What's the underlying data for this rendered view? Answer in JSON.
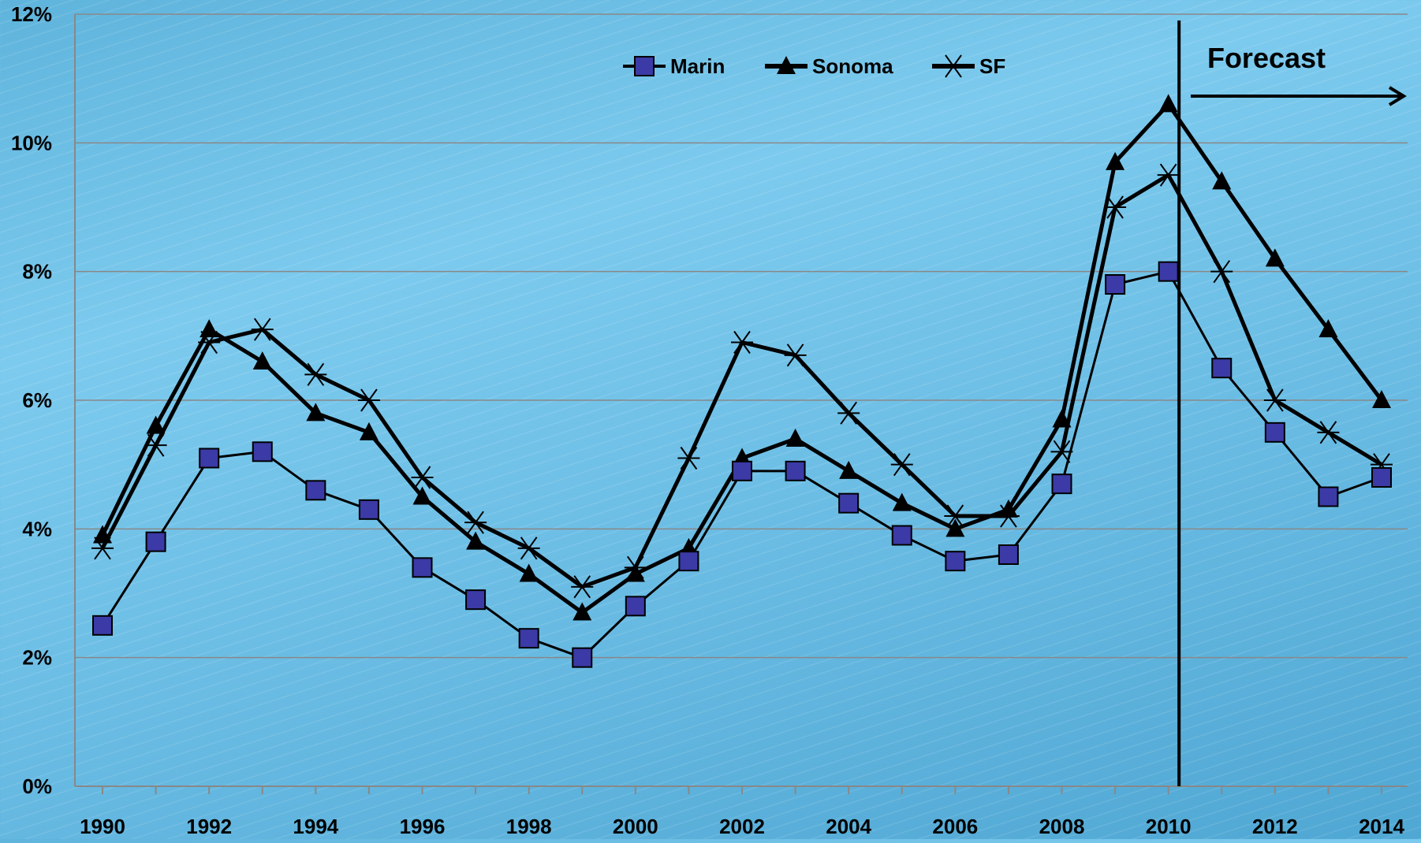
{
  "chart_data": {
    "type": "line",
    "categories": [
      "1990",
      "1991",
      "1992",
      "1993",
      "1994",
      "1995",
      "1996",
      "1997",
      "1998",
      "1999",
      "2000",
      "2001",
      "2002",
      "2003",
      "2004",
      "2005",
      "2006",
      "2007",
      "2008",
      "2009",
      "2010",
      "2011",
      "2012",
      "2013",
      "2014"
    ],
    "x_tick_labels": [
      "1990",
      "1992",
      "1994",
      "1996",
      "1998",
      "2000",
      "2002",
      "2004",
      "2006",
      "2008",
      "2010",
      "2012",
      "2014"
    ],
    "y_tick_labels": [
      "0%",
      "2%",
      "4%",
      "6%",
      "8%",
      "10%",
      "12%"
    ],
    "ylim": [
      0,
      12
    ],
    "y_unit": "%",
    "grid": "horizontal",
    "legend_position": "top-center",
    "series": [
      {
        "name": "Marin",
        "marker": "square",
        "color": "#3b3aa6",
        "values": [
          2.5,
          3.8,
          5.1,
          5.2,
          4.6,
          4.3,
          3.4,
          2.9,
          2.3,
          2.0,
          2.8,
          3.5,
          4.9,
          4.9,
          4.4,
          3.9,
          3.5,
          3.6,
          4.7,
          7.8,
          8.0,
          6.5,
          5.5,
          4.5,
          4.8
        ]
      },
      {
        "name": "Sonoma",
        "marker": "triangle",
        "color": "#000000",
        "values": [
          3.9,
          5.6,
          7.1,
          6.6,
          5.8,
          5.5,
          4.5,
          3.8,
          3.3,
          2.7,
          3.3,
          3.7,
          5.1,
          5.4,
          4.9,
          4.4,
          4.0,
          4.3,
          5.7,
          9.7,
          10.6,
          9.4,
          8.2,
          7.1,
          6.0
        ]
      },
      {
        "name": "SF",
        "marker": "asterisk",
        "color": "#000000",
        "values": [
          3.7,
          5.3,
          6.9,
          7.1,
          6.4,
          6.0,
          4.8,
          4.1,
          3.7,
          3.1,
          3.4,
          5.1,
          6.9,
          6.7,
          5.8,
          5.0,
          4.2,
          4.2,
          5.2,
          9.0,
          9.5,
          8.0,
          6.0,
          5.5,
          5.0
        ]
      }
    ],
    "annotations": [
      {
        "text": "Forecast",
        "type": "vertical-line-with-arrow",
        "x": 2010.2
      }
    ]
  }
}
